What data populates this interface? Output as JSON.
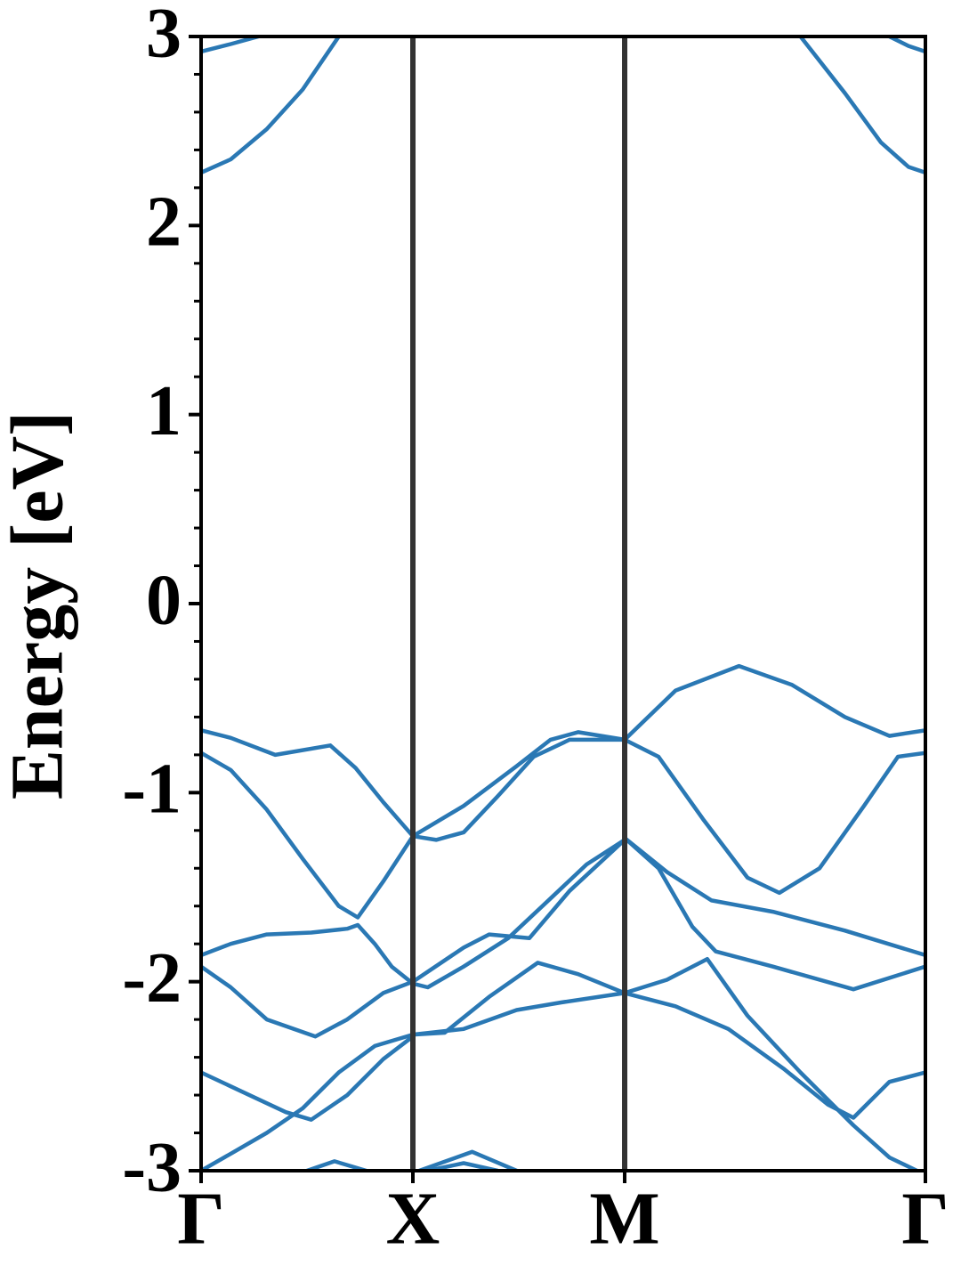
{
  "chart_data": {
    "type": "line",
    "ylabel": "Energy [eV]",
    "color": "#2a78b4",
    "vline_color": "#333333",
    "xlim": [
      0,
      3.42
    ],
    "xticks": [
      {
        "value": 0,
        "label": "Γ"
      },
      {
        "value": 1,
        "label": "X"
      },
      {
        "value": 2,
        "label": "M"
      },
      {
        "value": 3.42,
        "label": "Γ"
      }
    ],
    "ylim": [
      -3,
      3
    ],
    "yticks": [
      -3,
      -2,
      -1,
      0,
      1,
      2,
      3
    ],
    "yminorticks": [
      -2.8,
      -2.6,
      -2.4,
      -2.2,
      -1.8,
      -1.6,
      -1.4,
      -1.2,
      -0.8,
      -0.6,
      -0.4,
      -0.2,
      0.2,
      0.4,
      0.6,
      0.8,
      1.2,
      1.4,
      1.6,
      1.8,
      2.2,
      2.4,
      2.6,
      2.8
    ],
    "series": [
      {
        "x": [
          0,
          0.14,
          0.27
        ],
        "values": [
          2.92,
          2.96,
          3.0
        ]
      },
      {
        "x": [
          0,
          0.14,
          0.31,
          0.48,
          0.65
        ],
        "values": [
          2.28,
          2.35,
          2.51,
          2.72,
          3.0
        ]
      },
      {
        "x": [
          2.83,
          3.04,
          3.21,
          3.34,
          3.42
        ],
        "values": [
          3.0,
          2.7,
          2.44,
          2.31,
          2.28
        ]
      },
      {
        "x": [
          3.25,
          3.34,
          3.42
        ],
        "values": [
          3.0,
          2.95,
          2.92
        ]
      },
      {
        "x": [
          0,
          0.14,
          0.35,
          0.61,
          0.73,
          0.86,
          1
        ],
        "values": [
          -0.67,
          -0.71,
          -0.8,
          -0.75,
          -0.87,
          -1.05,
          -1.23
        ]
      },
      {
        "x": [
          0,
          0.14,
          0.31,
          0.48,
          0.65,
          0.74,
          0.86,
          1
        ],
        "values": [
          -0.79,
          -0.88,
          -1.09,
          -1.35,
          -1.6,
          -1.66,
          -1.47,
          -1.23
        ]
      },
      {
        "x": [
          0,
          0.14,
          0.31,
          0.52,
          0.69,
          0.74,
          0.82,
          0.9,
          1
        ],
        "values": [
          -1.86,
          -1.8,
          -1.75,
          -1.74,
          -1.72,
          -1.7,
          -1.8,
          -1.92,
          -2.01
        ]
      },
      {
        "x": [
          0,
          0.14,
          0.31,
          0.54,
          0.69,
          0.86,
          1
        ],
        "values": [
          -1.92,
          -2.03,
          -2.2,
          -2.29,
          -2.2,
          -2.06,
          -2.0
        ]
      },
      {
        "x": [
          0,
          0.19,
          0.4,
          0.52,
          0.69,
          0.86,
          1
        ],
        "values": [
          -2.48,
          -2.58,
          -2.69,
          -2.73,
          -2.6,
          -2.41,
          -2.29
        ]
      },
      {
        "x": [
          0,
          0.14,
          0.31,
          0.48,
          0.65,
          0.82,
          1
        ],
        "values": [
          -3.0,
          -2.91,
          -2.8,
          -2.67,
          -2.48,
          -2.34,
          -2.28
        ]
      },
      {
        "x": [
          0.5,
          0.63,
          0.78
        ],
        "values": [
          -3.0,
          -2.95,
          -3.0
        ]
      },
      {
        "x": [
          1,
          1.24,
          1.49,
          1.65,
          1.78,
          2
        ],
        "values": [
          -1.23,
          -1.07,
          -0.86,
          -0.72,
          -0.68,
          -0.72
        ]
      },
      {
        "x": [
          1,
          1.11,
          1.24,
          1.4,
          1.57,
          1.74,
          2
        ],
        "values": [
          -1.23,
          -1.25,
          -1.21,
          -1.02,
          -0.81,
          -0.72,
          -0.72
        ]
      },
      {
        "x": [
          1,
          1.24,
          1.36,
          1.55,
          1.74,
          2
        ],
        "values": [
          -2.0,
          -1.82,
          -1.75,
          -1.77,
          -1.52,
          -1.25
        ]
      },
      {
        "x": [
          1,
          1.07,
          1.24,
          1.45,
          1.65,
          1.82,
          2
        ],
        "values": [
          -2.01,
          -2.03,
          -1.92,
          -1.77,
          -1.56,
          -1.38,
          -1.25
        ]
      },
      {
        "x": [
          1,
          1.15,
          1.36,
          1.59,
          1.78,
          2
        ],
        "values": [
          -2.28,
          -2.27,
          -2.08,
          -1.9,
          -1.96,
          -2.06
        ]
      },
      {
        "x": [
          1,
          1.24,
          1.49,
          1.7,
          2
        ],
        "values": [
          -2.28,
          -2.25,
          -2.15,
          -2.11,
          -2.06
        ]
      },
      {
        "x": [
          1.03,
          1.28,
          1.49
        ],
        "values": [
          -3.0,
          -2.9,
          -3.0
        ]
      },
      {
        "x": [
          1.07,
          1.24,
          1.4
        ],
        "values": [
          -3.0,
          -2.96,
          -3.0
        ]
      },
      {
        "x": [
          2,
          2.24,
          2.54,
          2.79,
          3.04,
          3.25,
          3.42
        ],
        "values": [
          -0.72,
          -0.46,
          -0.33,
          -0.43,
          -0.6,
          -0.7,
          -0.67
        ]
      },
      {
        "x": [
          2,
          2.16,
          2.37,
          2.58,
          2.73,
          2.92,
          3.13,
          3.29,
          3.42
        ],
        "values": [
          -0.72,
          -0.81,
          -1.14,
          -1.45,
          -1.53,
          -1.4,
          -1.07,
          -0.81,
          -0.79
        ]
      },
      {
        "x": [
          2,
          2.16,
          2.32,
          2.43,
          2.7,
          3.08,
          3.42
        ],
        "values": [
          -1.24,
          -1.4,
          -1.71,
          -1.84,
          -1.92,
          -2.04,
          -1.92
        ]
      },
      {
        "x": [
          2,
          2.2,
          2.41,
          2.7,
          3.04,
          3.42
        ],
        "values": [
          -1.24,
          -1.42,
          -1.57,
          -1.63,
          -1.73,
          -1.86
        ]
      },
      {
        "x": [
          2,
          2.2,
          2.39,
          2.58,
          2.83,
          3.08,
          3.25,
          3.38
        ],
        "values": [
          -2.06,
          -1.99,
          -1.88,
          -2.18,
          -2.48,
          -2.76,
          -2.93,
          -3.0
        ]
      },
      {
        "x": [
          2,
          2.24,
          2.49,
          2.75,
          2.96,
          3.08,
          3.25,
          3.42
        ],
        "values": [
          -2.06,
          -2.13,
          -2.25,
          -2.46,
          -2.65,
          -2.72,
          -2.53,
          -2.48
        ]
      }
    ]
  }
}
